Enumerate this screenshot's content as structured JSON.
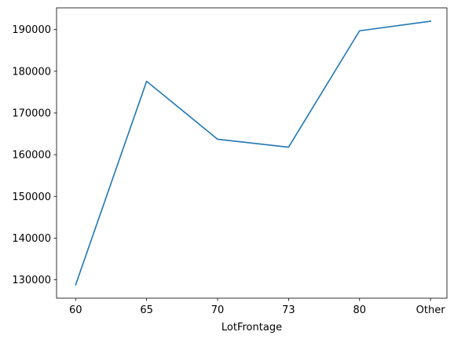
{
  "chart_data": {
    "type": "line",
    "title": "",
    "xlabel": "LotFrontage",
    "ylabel": "",
    "categories": [
      "60",
      "65",
      "70",
      "73",
      "80",
      "Other"
    ],
    "series": [
      {
        "values": [
          128800,
          177600,
          163700,
          161800,
          189700,
          192000
        ],
        "color": "#1f77b4"
      }
    ],
    "ylim": [
      125600,
      195200
    ],
    "yticks": [
      130000,
      140000,
      150000,
      160000,
      170000,
      180000,
      190000
    ],
    "ytick_labels": [
      "130000",
      "140000",
      "150000",
      "160000",
      "170000",
      "180000",
      "190000"
    ],
    "grid": false,
    "legend": "none"
  }
}
